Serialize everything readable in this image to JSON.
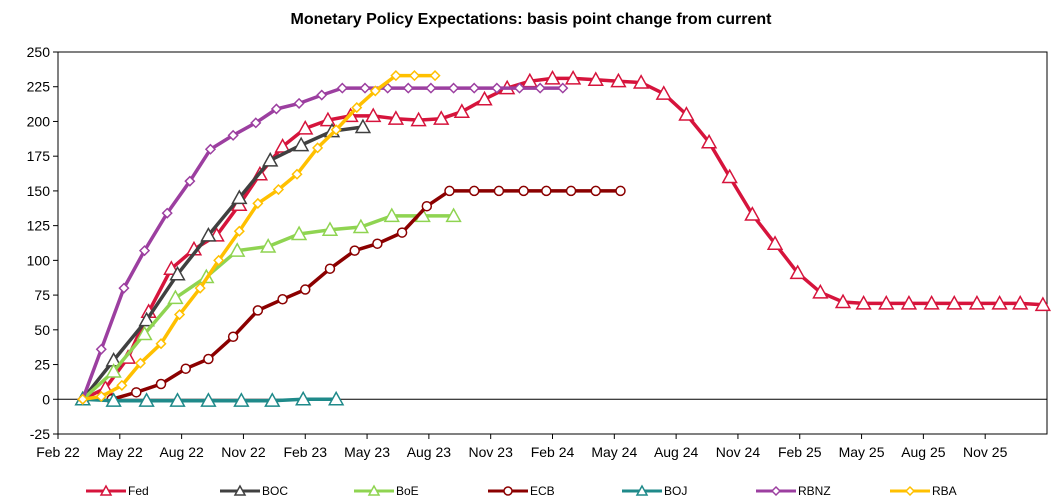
{
  "chart_data": {
    "type": "line",
    "title": "Monetary Policy Expectations: basis point change from current",
    "xlabel": "",
    "ylabel": "",
    "ylim": [
      -25,
      250
    ],
    "yticks": [
      250,
      225,
      200,
      175,
      150,
      125,
      100,
      75,
      50,
      25,
      0,
      -25
    ],
    "xlim_months": [
      0,
      48
    ],
    "xtick_labels": [
      "Feb 22",
      "May 22",
      "Aug 22",
      "Nov 22",
      "Feb 23",
      "May 23",
      "Aug 23",
      "Nov 23",
      "Feb 24",
      "May 24",
      "Aug 24",
      "Nov 24",
      "Feb 25",
      "May 25",
      "Aug 25",
      "Nov 25"
    ],
    "xtick_months": [
      0,
      3,
      6,
      9,
      12,
      15,
      18,
      21,
      24,
      27,
      30,
      33,
      36,
      39,
      42,
      45
    ],
    "x_unit": "months since Feb 2022",
    "grid": false,
    "legend_position": "bottom",
    "series": [
      {
        "name": "Fed",
        "color": "#d6143c",
        "marker": "triangle",
        "x": [
          1.2,
          2.3,
          3.4,
          4.4,
          5.5,
          6.6,
          7.7,
          8.8,
          9.8,
          10.9,
          12.0,
          13.1,
          14.2,
          15.3,
          16.4,
          17.5,
          18.6,
          19.6,
          20.7,
          21.8,
          22.9,
          24.0,
          25.0,
          26.1,
          27.2,
          28.3,
          29.4,
          30.5,
          31.6,
          32.6,
          33.7,
          34.8,
          35.9,
          37.0,
          38.1,
          39.1,
          40.2,
          41.3,
          42.4,
          43.5,
          44.6,
          45.7,
          46.7,
          47.8
        ],
        "y": [
          0,
          8,
          30,
          63,
          94,
          108,
          118,
          140,
          162,
          182,
          195,
          201,
          204,
          204,
          202,
          201,
          202,
          207,
          216,
          224,
          229,
          231,
          231,
          230,
          229,
          228,
          220,
          205,
          185,
          160,
          133,
          112,
          91,
          77,
          70,
          69,
          69,
          69,
          69,
          69,
          69,
          69,
          69,
          68
        ]
      },
      {
        "name": "BOC",
        "color": "#404040",
        "marker": "triangle",
        "x": [
          1.2,
          2.7,
          4.3,
          5.8,
          7.3,
          8.8,
          10.3,
          11.8,
          13.3,
          14.8
        ],
        "y": [
          0,
          28,
          57,
          90,
          118,
          145,
          172,
          183,
          193,
          196
        ]
      },
      {
        "name": "BoE",
        "color": "#8fd451",
        "marker": "triangle",
        "x": [
          1.2,
          2.7,
          4.2,
          5.7,
          7.2,
          8.7,
          10.2,
          11.7,
          13.2,
          14.7,
          16.2,
          17.7,
          19.2
        ],
        "y": [
          0,
          20,
          47,
          73,
          88,
          107,
          110,
          119,
          122,
          124,
          132,
          132,
          132
        ]
      },
      {
        "name": "ECB",
        "color": "#8b0000",
        "marker": "circle",
        "x": [
          2.6,
          3.8,
          5.0,
          6.2,
          7.3,
          8.5,
          9.7,
          10.9,
          12.0,
          13.2,
          14.4,
          15.5,
          16.7,
          17.9,
          19.0,
          20.2,
          21.4,
          22.6,
          23.7,
          24.9,
          26.1,
          27.3
        ],
        "y": [
          0,
          5,
          11,
          22,
          29,
          45,
          64,
          72,
          79,
          94,
          107,
          112,
          120,
          139,
          150,
          150,
          150,
          150,
          150,
          150,
          150,
          150
        ]
      },
      {
        "name": "BOJ",
        "color": "#1f8a8a",
        "marker": "triangle",
        "x": [
          1.2,
          2.7,
          4.3,
          5.8,
          7.3,
          8.9,
          10.4,
          11.9,
          13.5
        ],
        "y": [
          0,
          -1,
          -1,
          -1,
          -1,
          -1,
          -1,
          0,
          0
        ]
      },
      {
        "name": "RBNZ",
        "color": "#9c3fa0",
        "marker": "diamond",
        "x": [
          1.2,
          2.1,
          3.2,
          4.2,
          5.3,
          6.4,
          7.4,
          8.5,
          9.6,
          10.6,
          11.7,
          12.8,
          13.8,
          14.9,
          16.0,
          17.0,
          18.1,
          19.2,
          20.2,
          21.3,
          22.4,
          23.4,
          24.5
        ],
        "y": [
          0,
          36,
          80,
          107,
          134,
          157,
          180,
          190,
          199,
          209,
          213,
          219,
          224,
          224,
          224,
          224,
          224,
          224,
          224,
          224,
          224,
          224,
          224
        ]
      },
      {
        "name": "RBA",
        "color": "#ffc000",
        "marker": "diamond",
        "x": [
          1.2,
          2.1,
          3.1,
          4.0,
          5.0,
          5.9,
          6.9,
          7.8,
          8.8,
          9.7,
          10.7,
          11.6,
          12.6,
          13.5,
          14.5,
          15.4,
          16.4,
          17.3,
          18.3
        ],
        "y": [
          0,
          2,
          10,
          26,
          40,
          61,
          80,
          100,
          121,
          141,
          151,
          162,
          181,
          194,
          210,
          222,
          233,
          233,
          233
        ]
      }
    ]
  }
}
